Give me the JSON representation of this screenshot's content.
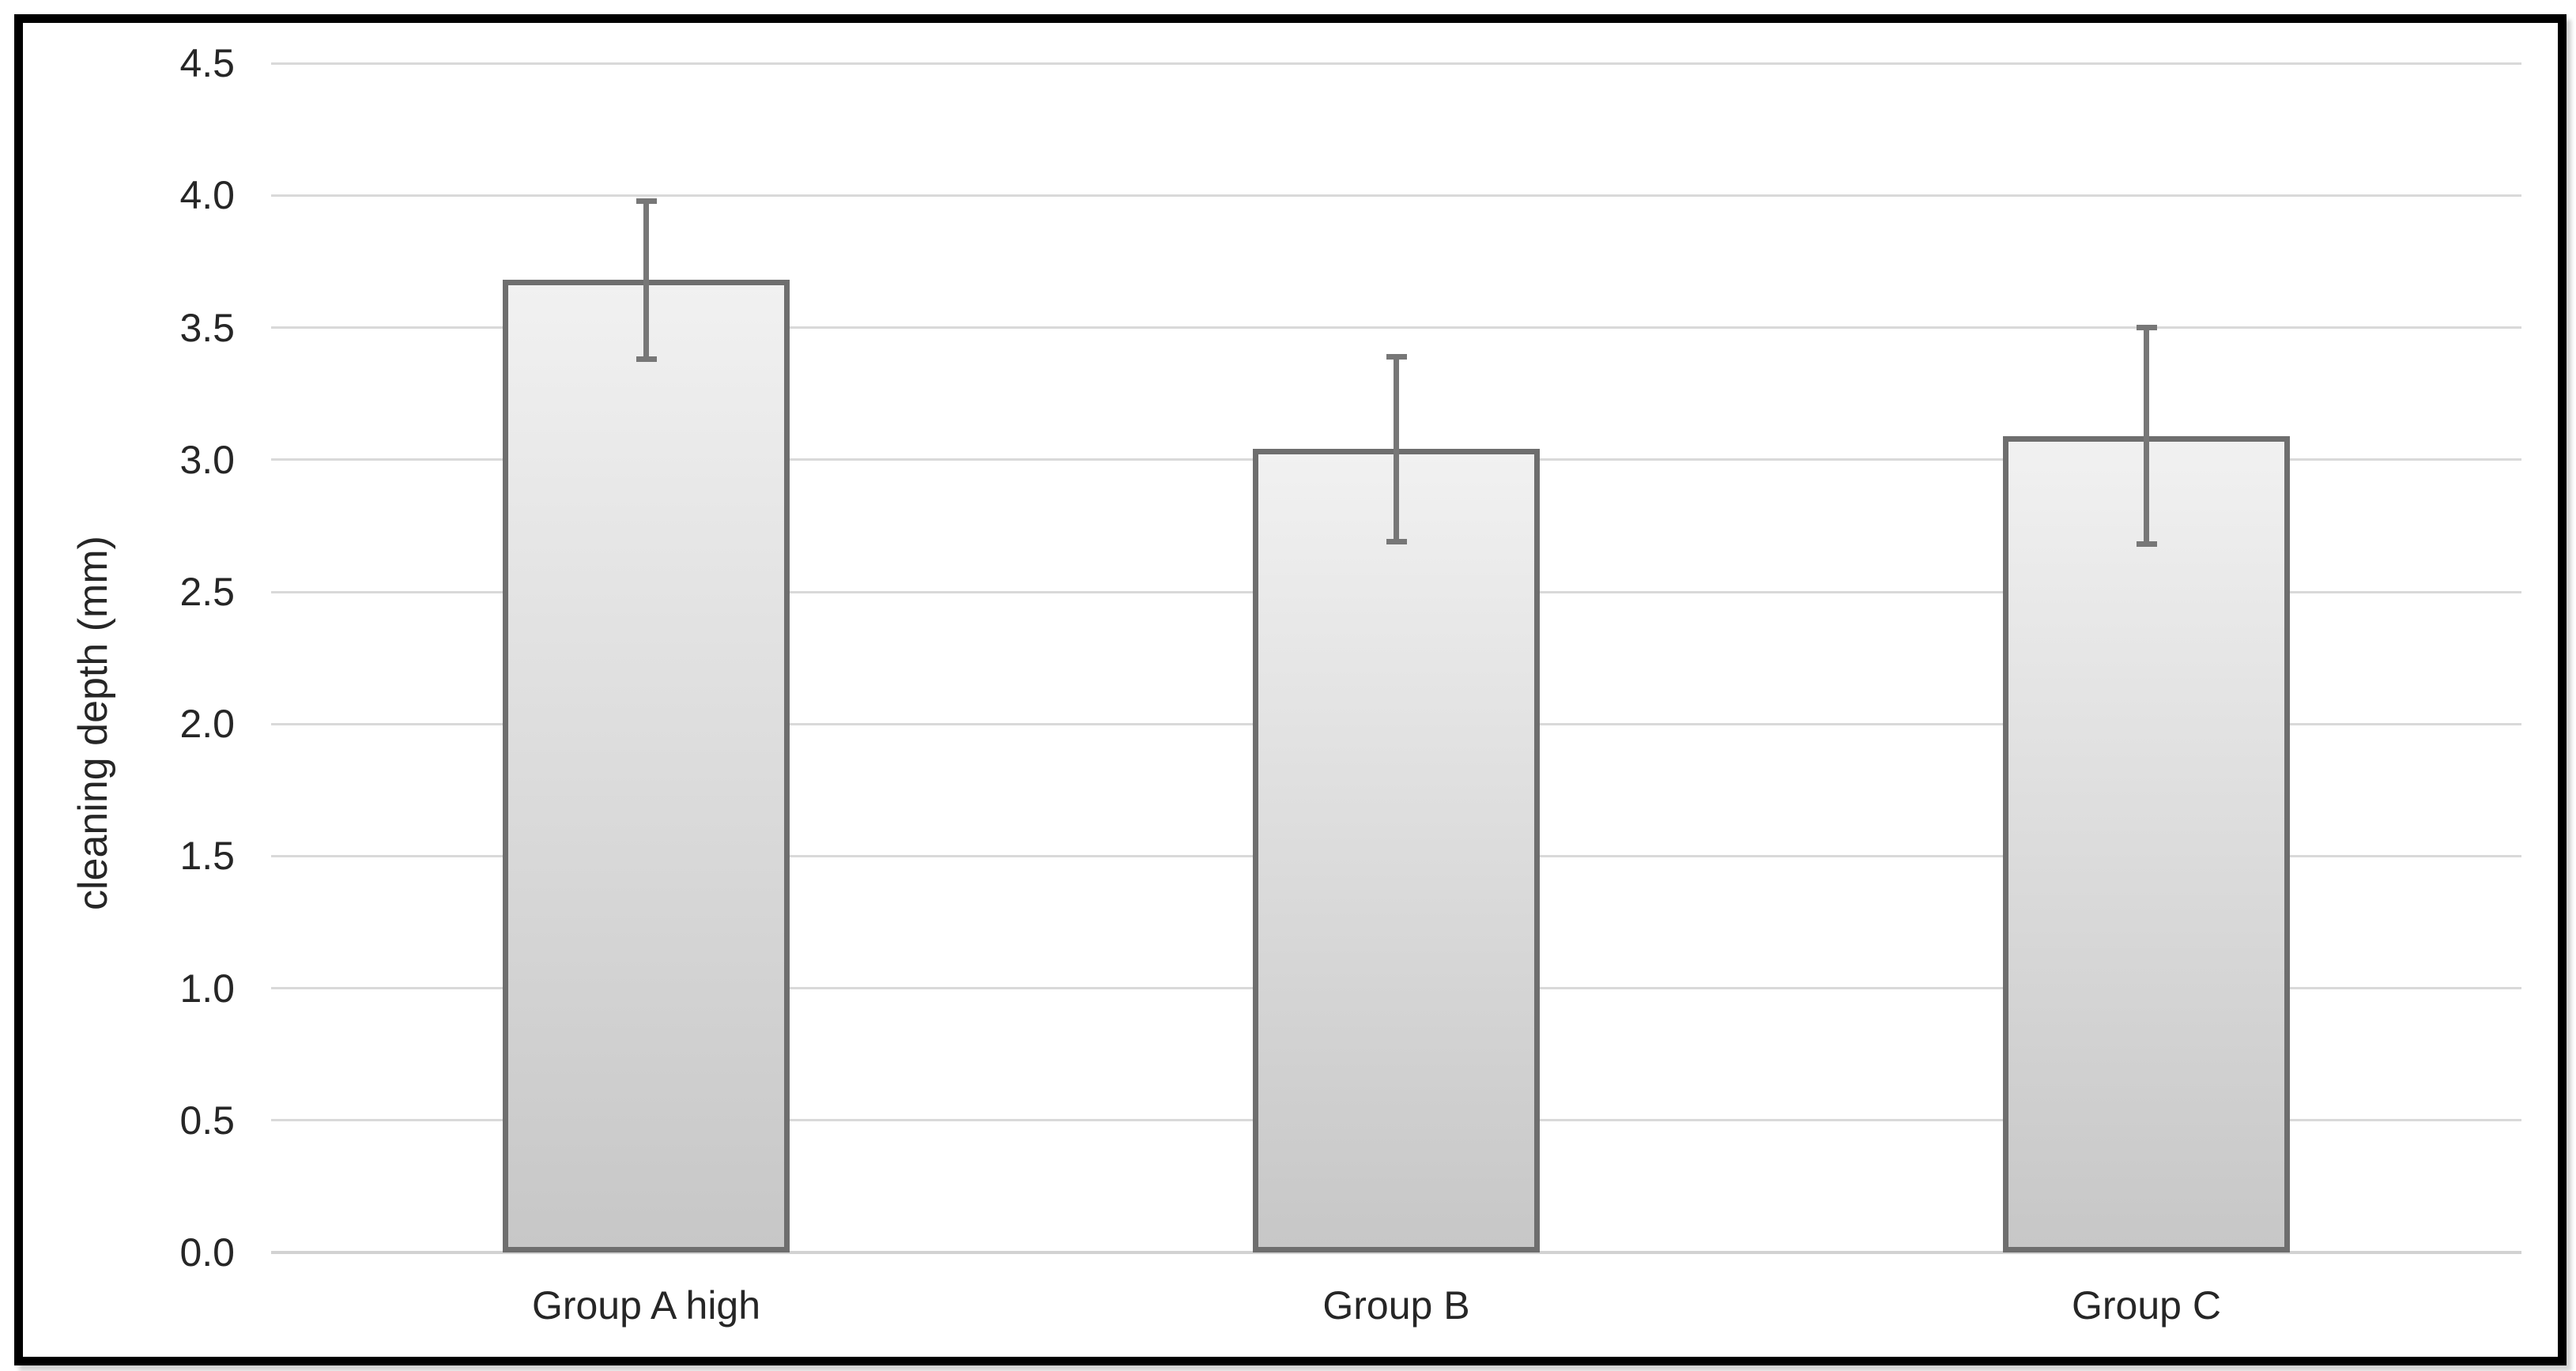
{
  "chart_data": {
    "type": "bar",
    "title": "",
    "categories": [
      "Group A high",
      "Group B",
      "Group C"
    ],
    "values": [
      3.68,
      3.04,
      3.09
    ],
    "errors": [
      0.3,
      0.35,
      0.41
    ],
    "ylabel": "cleaning depth (mm)",
    "xlabel": "",
    "ylim": [
      0.0,
      4.5
    ],
    "yticks": [
      0.0,
      0.5,
      1.0,
      1.5,
      2.0,
      2.5,
      3.0,
      3.5,
      4.0,
      4.5
    ],
    "ytick_decimals": 1,
    "grid": true,
    "legend": "none",
    "error_bar_caps": true
  },
  "style": {
    "background": "#ffffff",
    "frame_border_color": "#000000",
    "gridline_color": "#d9d9d9",
    "axis_line_color": "#d2d2d2",
    "bar_fill_top": "#f1f1f1",
    "bar_fill_bottom": "#c7c7c7",
    "bar_border_color": "#6e6e6e",
    "error_bar_color": "#777777",
    "text_color": "#262626"
  }
}
